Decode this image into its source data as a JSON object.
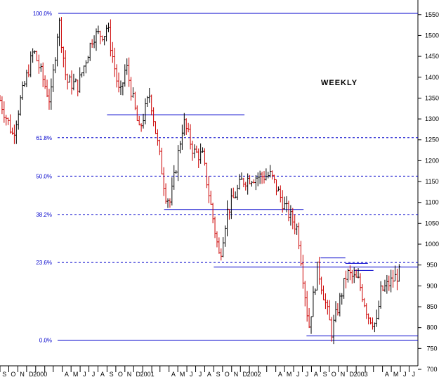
{
  "chart_data": {
    "type": "ohlc",
    "title": "WEEKLY",
    "ylim": [
      700,
      1560
    ],
    "y_ticks": [
      700,
      750,
      800,
      850,
      900,
      950,
      1000,
      1050,
      1100,
      1150,
      1200,
      1250,
      1300,
      1350,
      1400,
      1450,
      1500,
      1550
    ],
    "x_start": "1999-09-01",
    "x_end": "2003-07-31",
    "x_tick_labels": [
      {
        "date": "1999-09-01",
        "label": "S"
      },
      {
        "date": "1999-10-01",
        "label": "O"
      },
      {
        "date": "1999-11-01",
        "label": "N"
      },
      {
        "date": "1999-12-01",
        "label": "D"
      },
      {
        "date": "2000-01-01",
        "label": "2000"
      },
      {
        "date": "2000-02-01",
        "label": ""
      },
      {
        "date": "2000-03-01",
        "label": ""
      },
      {
        "date": "2000-04-01",
        "label": "A"
      },
      {
        "date": "2000-05-01",
        "label": "M"
      },
      {
        "date": "2000-06-01",
        "label": "J"
      },
      {
        "date": "2000-07-01",
        "label": "J"
      },
      {
        "date": "2000-08-01",
        "label": "A"
      },
      {
        "date": "2000-09-01",
        "label": "S"
      },
      {
        "date": "2000-10-01",
        "label": "O"
      },
      {
        "date": "2000-11-01",
        "label": "N"
      },
      {
        "date": "2000-12-01",
        "label": "D"
      },
      {
        "date": "2001-01-01",
        "label": "2001"
      },
      {
        "date": "2001-02-01",
        "label": ""
      },
      {
        "date": "2001-03-01",
        "label": ""
      },
      {
        "date": "2001-04-01",
        "label": "A"
      },
      {
        "date": "2001-05-01",
        "label": "M"
      },
      {
        "date": "2001-06-01",
        "label": "J"
      },
      {
        "date": "2001-07-01",
        "label": "J"
      },
      {
        "date": "2001-08-01",
        "label": "A"
      },
      {
        "date": "2001-09-01",
        "label": "S"
      },
      {
        "date": "2001-10-01",
        "label": "O"
      },
      {
        "date": "2001-11-01",
        "label": "N"
      },
      {
        "date": "2001-12-01",
        "label": "D"
      },
      {
        "date": "2002-01-01",
        "label": "2002"
      },
      {
        "date": "2002-02-01",
        "label": ""
      },
      {
        "date": "2002-03-01",
        "label": ""
      },
      {
        "date": "2002-04-01",
        "label": "A"
      },
      {
        "date": "2002-05-01",
        "label": "M"
      },
      {
        "date": "2002-06-01",
        "label": "J"
      },
      {
        "date": "2002-07-01",
        "label": "J"
      },
      {
        "date": "2002-08-01",
        "label": "A"
      },
      {
        "date": "2002-09-01",
        "label": "S"
      },
      {
        "date": "2002-10-01",
        "label": "O"
      },
      {
        "date": "2002-11-01",
        "label": "N"
      },
      {
        "date": "2002-12-01",
        "label": "D"
      },
      {
        "date": "2003-01-01",
        "label": "2003"
      },
      {
        "date": "2003-02-01",
        "label": ""
      },
      {
        "date": "2003-03-01",
        "label": ""
      },
      {
        "date": "2003-04-01",
        "label": "A"
      },
      {
        "date": "2003-05-01",
        "label": "M"
      },
      {
        "date": "2003-06-01",
        "label": "J"
      },
      {
        "date": "2003-07-01",
        "label": "J"
      }
    ],
    "fib_levels": [
      {
        "label": "100.0%",
        "value": 1553,
        "style": "solid"
      },
      {
        "label": "61.8%",
        "value": 1255,
        "style": "dashed"
      },
      {
        "label": "50.0%",
        "value": 1163,
        "style": "dashed"
      },
      {
        "label": "38.2%",
        "value": 1071,
        "style": "dashed"
      },
      {
        "label": "23.6%",
        "value": 956,
        "style": "dashed"
      },
      {
        "label": "0.0%",
        "value": 770,
        "style": "solid"
      }
    ],
    "support_resistance_lines": [
      {
        "start": "2000-09-01",
        "end": "2001-12-15",
        "value": 1310
      },
      {
        "start": "2001-03-15",
        "end": "2002-07-05",
        "value": 1083
      },
      {
        "start": "2001-09-01",
        "end": "2003-07-31",
        "value": 945
      },
      {
        "start": "2002-09-01",
        "end": "2002-11-25",
        "value": 967
      },
      {
        "start": "2002-07-15",
        "end": "2003-07-31",
        "value": 780
      },
      {
        "start": "2002-11-25",
        "end": "2003-02-10",
        "value": 954
      },
      {
        "start": "2002-12-25",
        "end": "2003-03-01",
        "value": 937
      }
    ],
    "anchors": [
      [
        "1999-09-01",
        1345
      ],
      [
        "1999-10-15",
        1260
      ],
      [
        "1999-11-10",
        1345
      ],
      [
        "1999-12-25",
        1465
      ],
      [
        "2000-02-20",
        1340
      ],
      [
        "2000-03-20",
        1540
      ],
      [
        "2000-04-15",
        1390
      ],
      [
        "2000-05-25",
        1380
      ],
      [
        "2000-07-15",
        1500
      ],
      [
        "2000-08-25",
        1505
      ],
      [
        "2000-09-01",
        1525
      ],
      [
        "2000-10-15",
        1350
      ],
      [
        "2000-11-05",
        1430
      ],
      [
        "2000-12-20",
        1270
      ],
      [
        "2001-01-25",
        1360
      ],
      [
        "2001-03-20",
        1120
      ],
      [
        "2001-04-05",
        1100
      ],
      [
        "2001-05-20",
        1295
      ],
      [
        "2001-06-25",
        1220
      ],
      [
        "2001-07-25",
        1210
      ],
      [
        "2001-09-21",
        965
      ],
      [
        "2001-10-15",
        1075
      ],
      [
        "2001-12-05",
        1150
      ],
      [
        "2002-01-05",
        1160
      ],
      [
        "2002-03-15",
        1165
      ],
      [
        "2002-05-01",
        1090
      ],
      [
        "2002-06-15",
        1035
      ],
      [
        "2002-07-23",
        800
      ],
      [
        "2002-08-22",
        945
      ],
      [
        "2002-10-09",
        790
      ],
      [
        "2002-11-30",
        930
      ],
      [
        "2003-01-10",
        910
      ],
      [
        "2003-02-10",
        830
      ],
      [
        "2003-03-11",
        805
      ],
      [
        "2003-03-25",
        885
      ],
      [
        "2003-05-28",
        930
      ]
    ]
  }
}
